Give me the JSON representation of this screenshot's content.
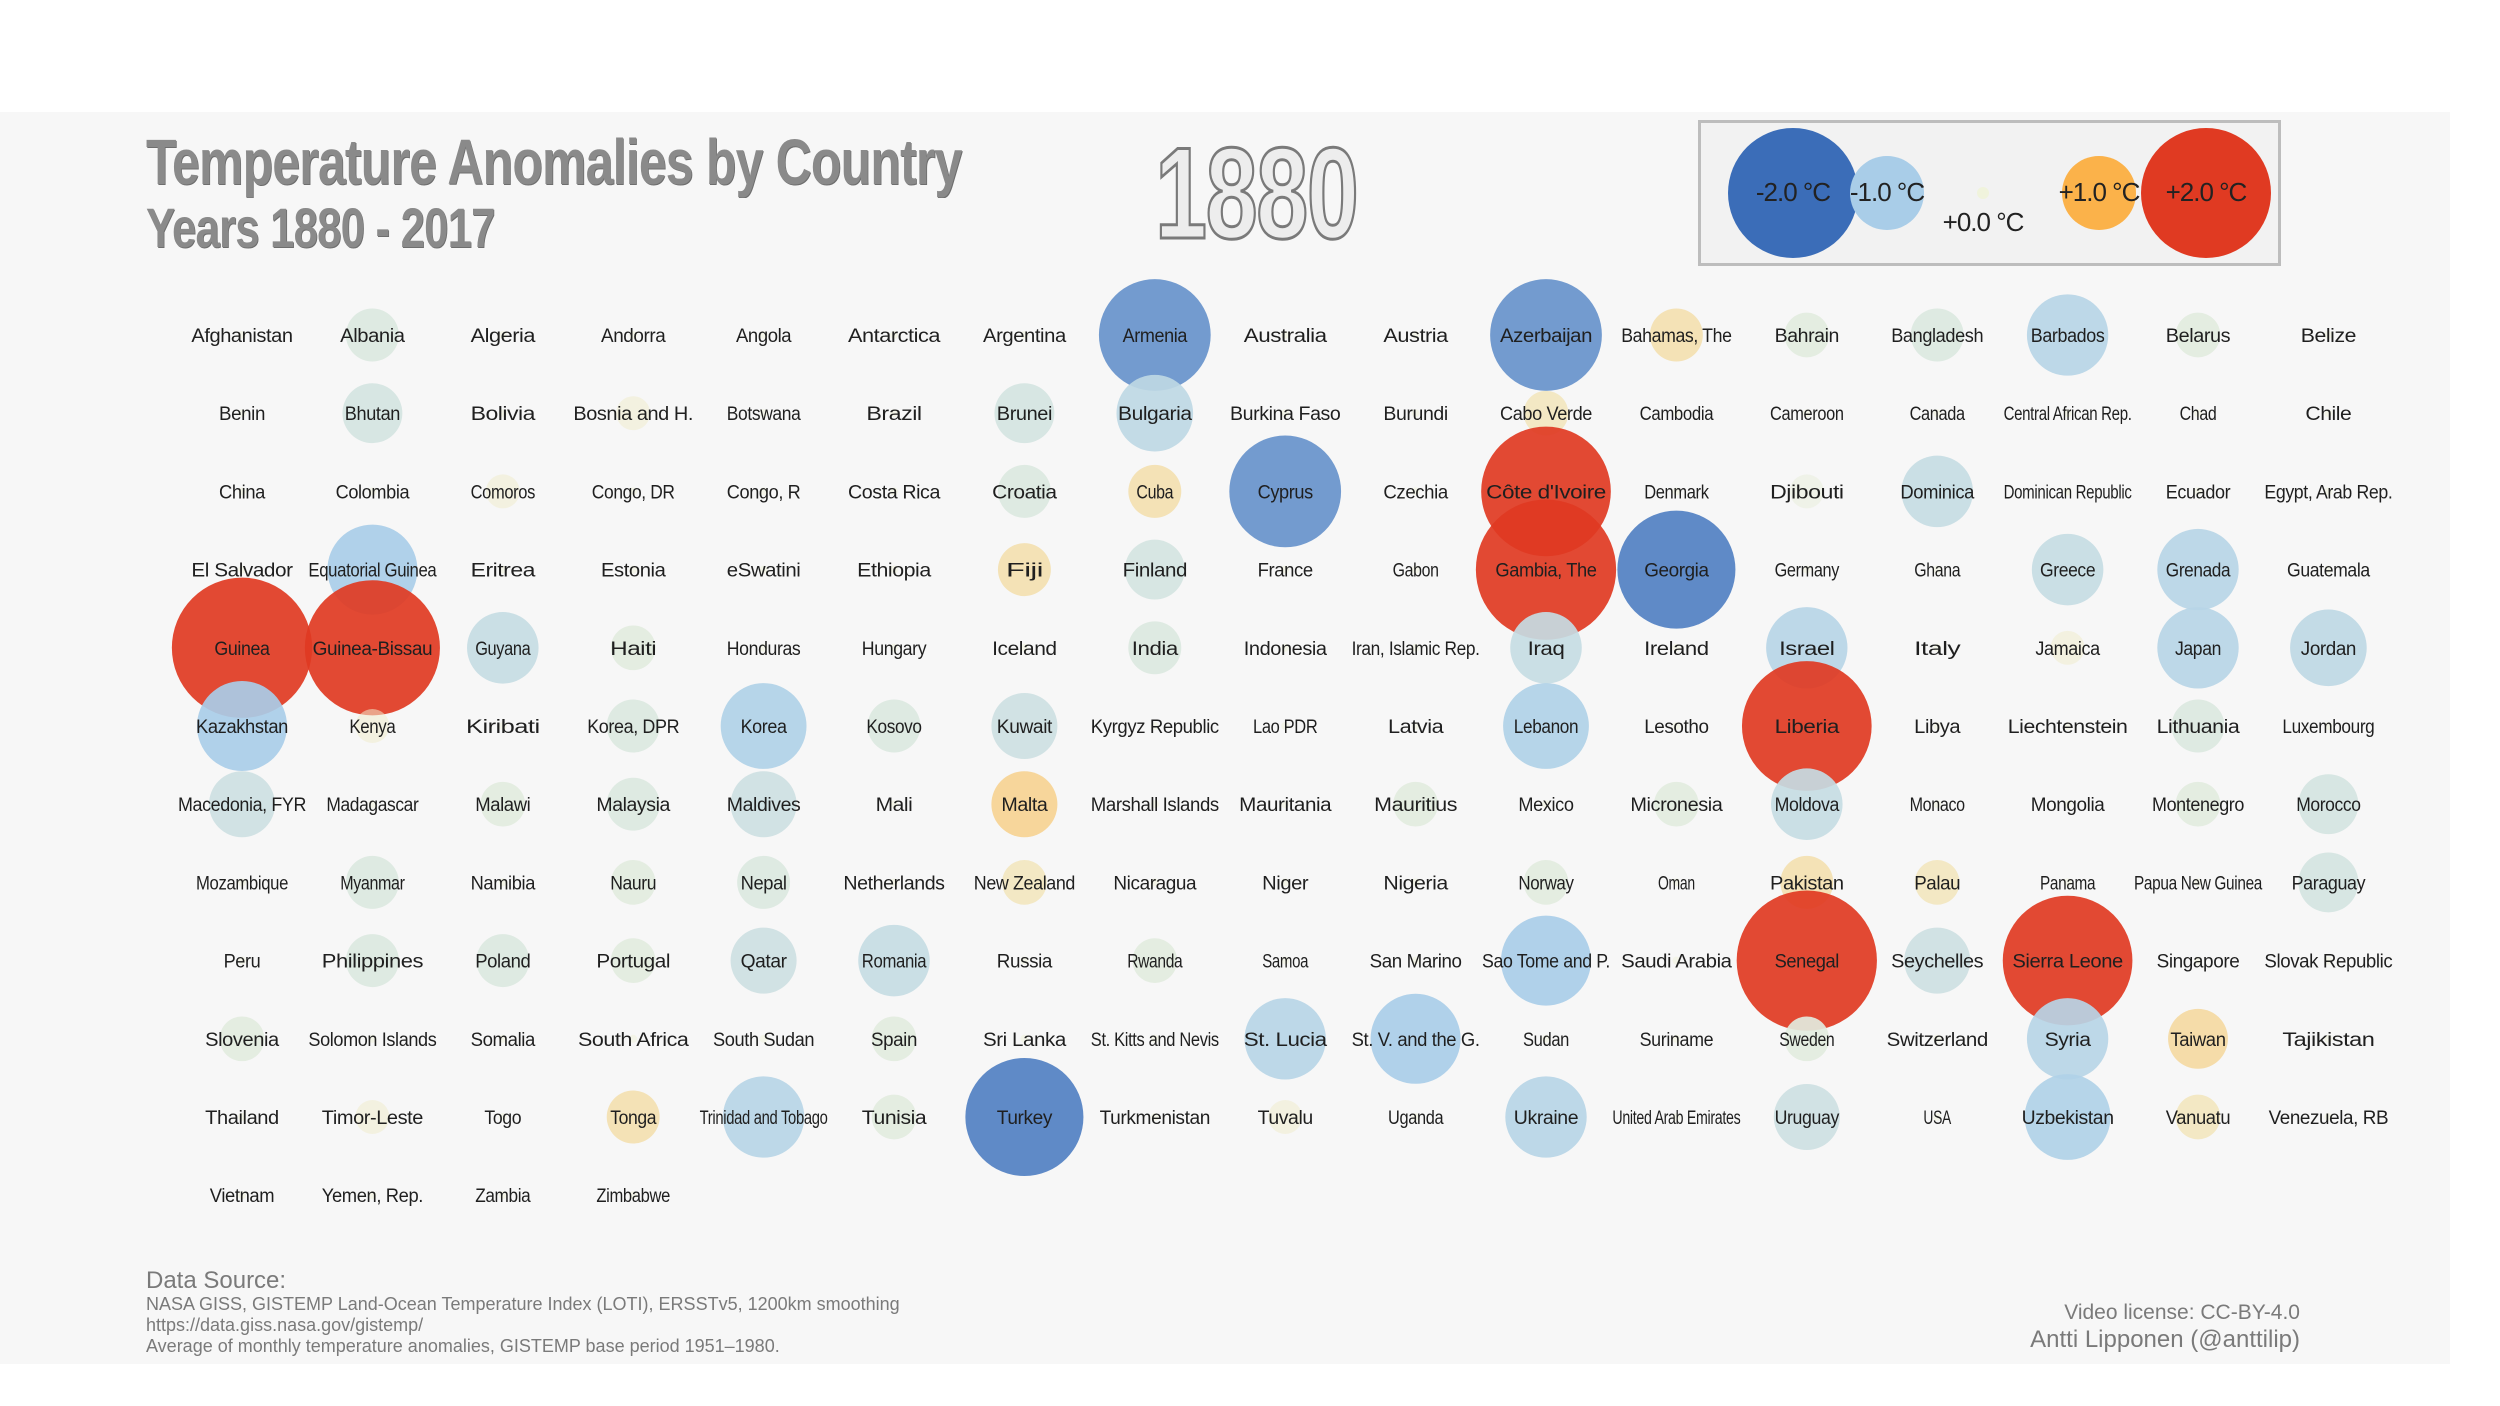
{
  "colors": {
    "background": "#f7f7f7",
    "cold_strong": "#3b6db8",
    "cold": "#a9cde8",
    "neutral": "#f0f3dc",
    "warm": "#fbb24a",
    "warm_strong": "#e03a22"
  },
  "header": {
    "title": "Temperature Anomalies by Country",
    "subtitle": "Years 1880 - 2017",
    "year": "1880"
  },
  "legend": {
    "items": [
      {
        "label": "-2.0 °C",
        "value": -2.0
      },
      {
        "label": "-1.0 °C",
        "value": -1.0
      },
      {
        "label": "+0.0 °C",
        "value": 0.0
      },
      {
        "label": "+1.0 °C",
        "value": 1.0
      },
      {
        "label": "+2.0 °C",
        "value": 2.0
      }
    ]
  },
  "chart_data": {
    "type": "scatter",
    "title": "Temperature Anomalies by Country",
    "subtitle": "Years 1880 - 2017",
    "unit": "°C",
    "scale": "circle area and colour encode anomaly; blue = colder, red = warmer",
    "columns": 17,
    "points": [
      {
        "name": "Afghanistan",
        "value": 0.0
      },
      {
        "name": "Albania",
        "value": -0.3
      },
      {
        "name": "Algeria",
        "value": 0.0
      },
      {
        "name": "Andorra",
        "value": 0.0
      },
      {
        "name": "Angola",
        "value": 0.0
      },
      {
        "name": "Antarctica",
        "value": 0.0
      },
      {
        "name": "Argentina",
        "value": 0.0
      },
      {
        "name": "Armenia",
        "value": -1.6
      },
      {
        "name": "Australia",
        "value": 0.0
      },
      {
        "name": "Austria",
        "value": 0.0
      },
      {
        "name": "Azerbaijan",
        "value": -1.6
      },
      {
        "name": "Bahamas, The",
        "value": 0.3
      },
      {
        "name": "Bahrain",
        "value": -0.2
      },
      {
        "name": "Bangladesh",
        "value": -0.3
      },
      {
        "name": "Barbados",
        "value": -0.8
      },
      {
        "name": "Belarus",
        "value": -0.2
      },
      {
        "name": "Belize",
        "value": 0.0
      },
      {
        "name": "Benin",
        "value": 0.0
      },
      {
        "name": "Bhutan",
        "value": -0.4
      },
      {
        "name": "Bolivia",
        "value": 0.0
      },
      {
        "name": "Bosnia and H.",
        "value": 0.1
      },
      {
        "name": "Botswana",
        "value": 0.0
      },
      {
        "name": "Brazil",
        "value": 0.0
      },
      {
        "name": "Brunei",
        "value": -0.4
      },
      {
        "name": "Bulgaria",
        "value": -0.7
      },
      {
        "name": "Burkina Faso",
        "value": 0.0
      },
      {
        "name": "Burundi",
        "value": 0.0
      },
      {
        "name": "Cabo Verde",
        "value": 0.2
      },
      {
        "name": "Cambodia",
        "value": 0.0
      },
      {
        "name": "Cameroon",
        "value": 0.0
      },
      {
        "name": "Canada",
        "value": 0.0
      },
      {
        "name": "Central African Rep.",
        "value": 0.0
      },
      {
        "name": "Chad",
        "value": 0.0
      },
      {
        "name": "Chile",
        "value": 0.0
      },
      {
        "name": "China",
        "value": 0.0
      },
      {
        "name": "Colombia",
        "value": 0.0
      },
      {
        "name": "Comoros",
        "value": 0.1
      },
      {
        "name": "Congo, DR",
        "value": 0.0
      },
      {
        "name": "Congo, R",
        "value": 0.0
      },
      {
        "name": "Costa Rica",
        "value": 0.0
      },
      {
        "name": "Croatia",
        "value": -0.3
      },
      {
        "name": "Cuba",
        "value": 0.3
      },
      {
        "name": "Cyprus",
        "value": -1.6
      },
      {
        "name": "Czechia",
        "value": 0.0
      },
      {
        "name": "Côte d'Ivoire",
        "value": 2.2
      },
      {
        "name": "Denmark",
        "value": 0.0
      },
      {
        "name": "Djibouti",
        "value": -0.1
      },
      {
        "name": "Dominica",
        "value": -0.6
      },
      {
        "name": "Dominican Republic",
        "value": 0.0
      },
      {
        "name": "Ecuador",
        "value": 0.0
      },
      {
        "name": "Egypt, Arab Rep.",
        "value": 0.0
      },
      {
        "name": "El Salvador",
        "value": 0.0
      },
      {
        "name": "Equatorial Guinea",
        "value": -1.0
      },
      {
        "name": "Eritrea",
        "value": 0.0
      },
      {
        "name": "Estonia",
        "value": 0.0
      },
      {
        "name": "eSwatini",
        "value": 0.0
      },
      {
        "name": "Ethiopia",
        "value": 0.0
      },
      {
        "name": "Fiji",
        "value": 0.3
      },
      {
        "name": "Finland",
        "value": -0.4
      },
      {
        "name": "France",
        "value": 0.0
      },
      {
        "name": "Gabon",
        "value": 0.0
      },
      {
        "name": "Gambia, The",
        "value": 2.6
      },
      {
        "name": "Georgia",
        "value": -1.8
      },
      {
        "name": "Germany",
        "value": 0.0
      },
      {
        "name": "Ghana",
        "value": 0.0
      },
      {
        "name": "Greece",
        "value": -0.6
      },
      {
        "name": "Grenada",
        "value": -0.8
      },
      {
        "name": "Guatemala",
        "value": 0.0
      },
      {
        "name": "Guinea",
        "value": 2.6
      },
      {
        "name": "Guinea-Bissau",
        "value": 2.4
      },
      {
        "name": "Guyana",
        "value": -0.6
      },
      {
        "name": "Haiti",
        "value": -0.2
      },
      {
        "name": "Honduras",
        "value": 0.0
      },
      {
        "name": "Hungary",
        "value": 0.0
      },
      {
        "name": "Iceland",
        "value": 0.0
      },
      {
        "name": "India",
        "value": -0.3
      },
      {
        "name": "Indonesia",
        "value": 0.0
      },
      {
        "name": "Iran, Islamic Rep.",
        "value": 0.0
      },
      {
        "name": "Iraq",
        "value": -0.6
      },
      {
        "name": "Ireland",
        "value": 0.0
      },
      {
        "name": "Israel",
        "value": -0.8
      },
      {
        "name": "Italy",
        "value": 0.0
      },
      {
        "name": "Jamaica",
        "value": 0.1
      },
      {
        "name": "Japan",
        "value": -0.8
      },
      {
        "name": "Jordan",
        "value": -0.7
      },
      {
        "name": "Kazakhstan",
        "value": -1.0
      },
      {
        "name": "Kenya",
        "value": 0.1
      },
      {
        "name": "Kiribati",
        "value": 0.0
      },
      {
        "name": "Korea, DPR",
        "value": -0.3
      },
      {
        "name": "Korea",
        "value": -0.9
      },
      {
        "name": "Kosovo",
        "value": -0.3
      },
      {
        "name": "Kuwait",
        "value": -0.5
      },
      {
        "name": "Kyrgyz Republic",
        "value": 0.0
      },
      {
        "name": "Lao PDR",
        "value": 0.0
      },
      {
        "name": "Latvia",
        "value": 0.0
      },
      {
        "name": "Lebanon",
        "value": -0.9
      },
      {
        "name": "Lesotho",
        "value": 0.0
      },
      {
        "name": "Liberia",
        "value": 2.2
      },
      {
        "name": "Libya",
        "value": 0.0
      },
      {
        "name": "Liechtenstein",
        "value": 0.0
      },
      {
        "name": "Lithuania",
        "value": -0.3
      },
      {
        "name": "Luxembourg",
        "value": 0.0
      },
      {
        "name": "Macedonia, FYR",
        "value": -0.5
      },
      {
        "name": "Madagascar",
        "value": 0.0
      },
      {
        "name": "Malawi",
        "value": -0.2
      },
      {
        "name": "Malaysia",
        "value": -0.3
      },
      {
        "name": "Maldives",
        "value": -0.5
      },
      {
        "name": "Mali",
        "value": 0.0
      },
      {
        "name": "Malta",
        "value": 0.5
      },
      {
        "name": "Marshall Islands",
        "value": 0.0
      },
      {
        "name": "Mauritania",
        "value": 0.0
      },
      {
        "name": "Mauritius",
        "value": -0.2
      },
      {
        "name": "Mexico",
        "value": 0.0
      },
      {
        "name": "Micronesia",
        "value": -0.2
      },
      {
        "name": "Moldova",
        "value": -0.6
      },
      {
        "name": "Monaco",
        "value": 0.0
      },
      {
        "name": "Mongolia",
        "value": 0.0
      },
      {
        "name": "Montenegro",
        "value": -0.2
      },
      {
        "name": "Morocco",
        "value": -0.4
      },
      {
        "name": "Mozambique",
        "value": 0.0
      },
      {
        "name": "Myanmar",
        "value": -0.3
      },
      {
        "name": "Namibia",
        "value": 0.0
      },
      {
        "name": "Nauru",
        "value": -0.2
      },
      {
        "name": "Nepal",
        "value": -0.3
      },
      {
        "name": "Netherlands",
        "value": 0.0
      },
      {
        "name": "New Zealand",
        "value": 0.2
      },
      {
        "name": "Nicaragua",
        "value": 0.0
      },
      {
        "name": "Niger",
        "value": 0.0
      },
      {
        "name": "Nigeria",
        "value": 0.0
      },
      {
        "name": "Norway",
        "value": -0.2
      },
      {
        "name": "Oman",
        "value": 0.0
      },
      {
        "name": "Pakistan",
        "value": 0.3
      },
      {
        "name": "Palau",
        "value": 0.2
      },
      {
        "name": "Panama",
        "value": 0.0
      },
      {
        "name": "Papua New Guinea",
        "value": 0.0
      },
      {
        "name": "Paraguay",
        "value": -0.4
      },
      {
        "name": "Peru",
        "value": 0.0
      },
      {
        "name": "Philippines",
        "value": -0.3
      },
      {
        "name": "Poland",
        "value": -0.3
      },
      {
        "name": "Portugal",
        "value": -0.2
      },
      {
        "name": "Qatar",
        "value": -0.5
      },
      {
        "name": "Romania",
        "value": -0.6
      },
      {
        "name": "Russia",
        "value": 0.0
      },
      {
        "name": "Rwanda",
        "value": -0.2
      },
      {
        "name": "Samoa",
        "value": 0.0
      },
      {
        "name": "San Marino",
        "value": 0.0
      },
      {
        "name": "Sao Tome and P.",
        "value": -1.0
      },
      {
        "name": "Saudi Arabia",
        "value": 0.0
      },
      {
        "name": "Senegal",
        "value": 2.6
      },
      {
        "name": "Seychelles",
        "value": -0.5
      },
      {
        "name": "Sierra Leone",
        "value": 2.2
      },
      {
        "name": "Singapore",
        "value": 0.0
      },
      {
        "name": "Slovak Republic",
        "value": 0.0
      },
      {
        "name": "Slovenia",
        "value": -0.2
      },
      {
        "name": "Solomon Islands",
        "value": 0.0
      },
      {
        "name": "Somalia",
        "value": 0.0
      },
      {
        "name": "South Africa",
        "value": 0.0
      },
      {
        "name": "South Sudan",
        "value": 0.0
      },
      {
        "name": "Spain",
        "value": -0.2
      },
      {
        "name": "Sri Lanka",
        "value": 0.0
      },
      {
        "name": "St. Kitts and Nevis",
        "value": 0.0
      },
      {
        "name": "St. Lucia",
        "value": -0.8
      },
      {
        "name": "St. V. and the G.",
        "value": -1.0
      },
      {
        "name": "Sudan",
        "value": 0.0
      },
      {
        "name": "Suriname",
        "value": 0.0
      },
      {
        "name": "Sweden",
        "value": -0.2
      },
      {
        "name": "Switzerland",
        "value": 0.0
      },
      {
        "name": "Syria",
        "value": -0.8
      },
      {
        "name": "Taiwan",
        "value": 0.4
      },
      {
        "name": "Tajikistan",
        "value": 0.0
      },
      {
        "name": "Thailand",
        "value": 0.0
      },
      {
        "name": "Timor-Leste",
        "value": 0.1
      },
      {
        "name": "Togo",
        "value": 0.0
      },
      {
        "name": "Tonga",
        "value": 0.3
      },
      {
        "name": "Trinidad and Tobago",
        "value": -0.8
      },
      {
        "name": "Tunisia",
        "value": -0.2
      },
      {
        "name": "Turkey",
        "value": -1.8
      },
      {
        "name": "Turkmenistan",
        "value": 0.0
      },
      {
        "name": "Tuvalu",
        "value": 0.1
      },
      {
        "name": "Uganda",
        "value": 0.0
      },
      {
        "name": "Ukraine",
        "value": -0.8
      },
      {
        "name": "United Arab Emirates",
        "value": 0.0
      },
      {
        "name": "Uruguay",
        "value": -0.5
      },
      {
        "name": "USA",
        "value": 0.0
      },
      {
        "name": "Uzbekistan",
        "value": -0.9
      },
      {
        "name": "Vanuatu",
        "value": 0.2
      },
      {
        "name": "Venezuela, RB",
        "value": 0.0
      },
      {
        "name": "Vietnam",
        "value": 0.0
      },
      {
        "name": "Yemen, Rep.",
        "value": 0.0
      },
      {
        "name": "Zambia",
        "value": 0.0
      },
      {
        "name": "Zimbabwe",
        "value": 0.0
      }
    ]
  },
  "footer": {
    "source_heading": "Data Source:",
    "source_lines": [
      "NASA GISS, GISTEMP Land-Ocean Temperature Index (LOTI), ERSSTv5, 1200km smoothing",
      "https://data.giss.nasa.gov/gistemp/",
      "Average of monthly temperature anomalies, GISTEMP base period 1951–1980."
    ],
    "license": "Video license: CC-BY-4.0",
    "author": "Antti Lipponen (@anttilip)"
  }
}
